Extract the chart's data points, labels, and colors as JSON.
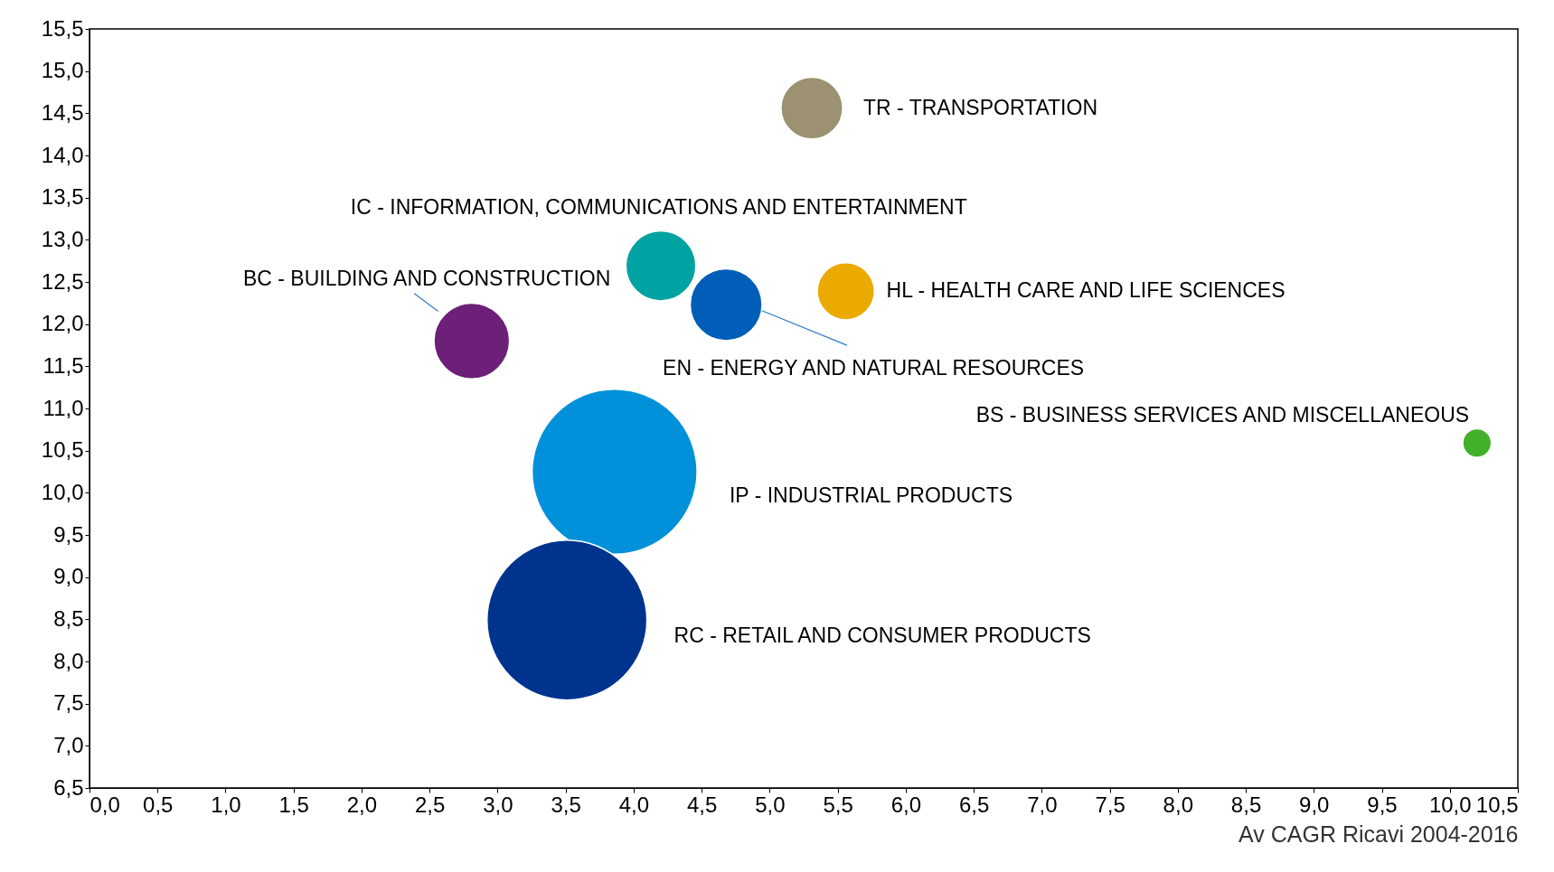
{
  "chart_data": {
    "type": "bubble",
    "xlabel": "Av CAGR Ricavi 2004-2016",
    "grid": false,
    "xlim": [
      0,
      10.5
    ],
    "ylim": [
      6.5,
      15.5
    ],
    "xticks": [
      {
        "value": 0,
        "label": "0,0"
      },
      {
        "value": 0.5,
        "label": "0,5"
      },
      {
        "value": 1,
        "label": "1,0"
      },
      {
        "value": 1.5,
        "label": "1,5"
      },
      {
        "value": 2,
        "label": "2,0"
      },
      {
        "value": 2.5,
        "label": "2,5"
      },
      {
        "value": 3,
        "label": "3,0"
      },
      {
        "value": 3.5,
        "label": "3,5"
      },
      {
        "value": 4,
        "label": "4,0"
      },
      {
        "value": 4.5,
        "label": "4,5"
      },
      {
        "value": 5,
        "label": "5,0"
      },
      {
        "value": 5.5,
        "label": "5,5"
      },
      {
        "value": 6,
        "label": "6,0"
      },
      {
        "value": 6.5,
        "label": "6,5"
      },
      {
        "value": 7,
        "label": "7,0"
      },
      {
        "value": 7.5,
        "label": "7,5"
      },
      {
        "value": 8,
        "label": "8,0"
      },
      {
        "value": 8.5,
        "label": "8,5"
      },
      {
        "value": 9,
        "label": "9,0"
      },
      {
        "value": 9.5,
        "label": "9,5"
      },
      {
        "value": 10,
        "label": "10,0"
      },
      {
        "value": 10.5,
        "label": "10,5"
      }
    ],
    "yticks": [
      {
        "value": 6.5,
        "label": "6,5"
      },
      {
        "value": 7,
        "label": "7,0"
      },
      {
        "value": 7.5,
        "label": "7,5"
      },
      {
        "value": 8,
        "label": "8,0"
      },
      {
        "value": 8.5,
        "label": "8,5"
      },
      {
        "value": 9,
        "label": "9,0"
      },
      {
        "value": 9.5,
        "label": "9,5"
      },
      {
        "value": 10,
        "label": "10,0"
      },
      {
        "value": 10.5,
        "label": "10,5"
      },
      {
        "value": 11,
        "label": "11,0"
      },
      {
        "value": 11.5,
        "label": "11,5"
      },
      {
        "value": 12,
        "label": "12,0"
      },
      {
        "value": 12.5,
        "label": "12,5"
      },
      {
        "value": 13,
        "label": "13,0"
      },
      {
        "value": 13.5,
        "label": "13,5"
      },
      {
        "value": 14,
        "label": "14,0"
      },
      {
        "value": 14.5,
        "label": "14,5"
      },
      {
        "value": 15,
        "label": "15,0"
      },
      {
        "value": 15.5,
        "label": "15,5"
      }
    ],
    "series": [
      {
        "name": "TR - TRANSPORTATION",
        "color": "#9c9272",
        "x": [
          5.31
        ],
        "values": [
          14.56
        ],
        "sizes": [
          0.14
        ]
      },
      {
        "name": "IC - INFORMATION, COMMUNICATIONS AND ENTERTAINMENT",
        "color": "#00a3a1",
        "x": [
          4.2
        ],
        "values": [
          12.69
        ],
        "sizes": [
          0.18
        ]
      },
      {
        "name": "BC - BUILDING AND CONSTRUCTION",
        "color": "#6d2077",
        "x": [
          2.81
        ],
        "values": [
          11.8
        ],
        "sizes": [
          0.21
        ]
      },
      {
        "name": "EN - ENERGY AND NATURAL RESOURCES",
        "color": "#005eb8",
        "x": [
          4.68
        ],
        "values": [
          12.23
        ],
        "sizes": [
          0.19
        ]
      },
      {
        "name": "HL - HEALTH CARE AND LIFE SCIENCES",
        "color": "#eaaa00",
        "x": [
          5.56
        ],
        "values": [
          12.39
        ],
        "sizes": [
          0.12
        ]
      },
      {
        "name": "BS - BUSINESS SERVICES AND MISCELLANEOUS",
        "color": "#43b02a",
        "x": [
          10.2
        ],
        "values": [
          10.59
        ],
        "sizes": [
          0.03
        ]
      },
      {
        "name": "IP - INDUSTRIAL PRODUCTS",
        "color": "#0091da",
        "x": [
          3.86
        ],
        "values": [
          10.25
        ],
        "sizes": [
          1
        ]
      },
      {
        "name": "RC - RETAIL AND CONSUMER PRODUCTS",
        "color": "#00338d",
        "x": [
          3.51
        ],
        "values": [
          8.49
        ],
        "sizes": [
          0.94
        ]
      }
    ]
  }
}
